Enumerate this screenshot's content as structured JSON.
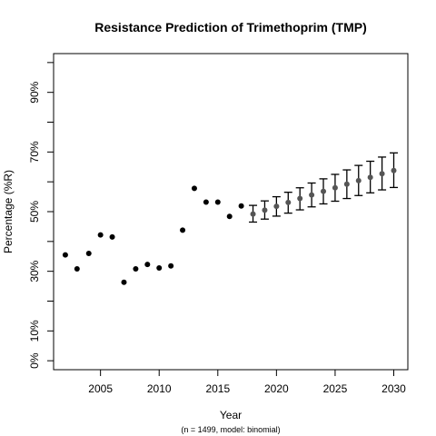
{
  "chart_data": {
    "type": "scatter",
    "title": "Resistance Prediction of Trimethoprim (TMP)",
    "xlabel": "Year",
    "ylabel": "Percentage (%R)",
    "caption": "(n = 1499, model: binomial)",
    "xlim": [
      2001,
      2031.2
    ],
    "ylim": [
      -3,
      103
    ],
    "x_ticks": [
      {
        "value": 2005,
        "label": "2005"
      },
      {
        "value": 2010,
        "label": "2010"
      },
      {
        "value": 2015,
        "label": "2015"
      },
      {
        "value": 2020,
        "label": "2020"
      },
      {
        "value": 2025,
        "label": "2025"
      },
      {
        "value": 2030,
        "label": "2030"
      }
    ],
    "y_ticks": [
      {
        "value": 0,
        "label": "0%"
      },
      {
        "value": 10,
        "label": "10%"
      },
      {
        "value": 20,
        "label": ""
      },
      {
        "value": 30,
        "label": "30%"
      },
      {
        "value": 40,
        "label": ""
      },
      {
        "value": 50,
        "label": "50%"
      },
      {
        "value": 60,
        "label": ""
      },
      {
        "value": 70,
        "label": "70%"
      },
      {
        "value": 80,
        "label": ""
      },
      {
        "value": 90,
        "label": "90%"
      },
      {
        "value": 100,
        "label": ""
      }
    ],
    "grid": false,
    "series": [
      {
        "points": [
          {
            "x": 2002,
            "y": 35.5
          },
          {
            "x": 2003,
            "y": 30.8
          },
          {
            "x": 2004,
            "y": 36.0
          },
          {
            "x": 2005,
            "y": 42.2
          },
          {
            "x": 2006,
            "y": 41.5
          },
          {
            "x": 2007,
            "y": 26.3
          },
          {
            "x": 2008,
            "y": 30.8
          },
          {
            "x": 2009,
            "y": 32.3
          },
          {
            "x": 2010,
            "y": 31.1
          },
          {
            "x": 2011,
            "y": 31.8
          },
          {
            "x": 2012,
            "y": 43.8
          },
          {
            "x": 2013,
            "y": 57.8
          },
          {
            "x": 2014,
            "y": 53.2
          },
          {
            "x": 2015,
            "y": 53.2
          },
          {
            "x": 2016,
            "y": 48.4
          },
          {
            "x": 2017,
            "y": 51.9
          }
        ],
        "color": "#000000"
      },
      {
        "points": [
          {
            "x": 2018,
            "y": 49.2,
            "lower": 46.5,
            "upper": 52.1
          },
          {
            "x": 2019,
            "y": 50.5,
            "lower": 47.5,
            "upper": 53.6
          },
          {
            "x": 2020,
            "y": 51.8,
            "lower": 48.5,
            "upper": 55.0
          },
          {
            "x": 2021,
            "y": 53.1,
            "lower": 49.5,
            "upper": 56.5
          },
          {
            "x": 2022,
            "y": 54.4,
            "lower": 50.6,
            "upper": 58.0
          },
          {
            "x": 2023,
            "y": 55.6,
            "lower": 51.6,
            "upper": 59.6
          },
          {
            "x": 2024,
            "y": 56.8,
            "lower": 52.6,
            "upper": 61.0
          },
          {
            "x": 2025,
            "y": 58.0,
            "lower": 53.5,
            "upper": 62.5
          },
          {
            "x": 2026,
            "y": 59.2,
            "lower": 54.4,
            "upper": 64.0
          },
          {
            "x": 2027,
            "y": 60.4,
            "lower": 55.4,
            "upper": 65.5
          },
          {
            "x": 2028,
            "y": 61.5,
            "lower": 56.3,
            "upper": 66.9
          },
          {
            "x": 2029,
            "y": 62.7,
            "lower": 57.3,
            "upper": 68.3
          },
          {
            "x": 2030,
            "y": 63.8,
            "lower": 58.1,
            "upper": 69.7
          }
        ],
        "color": "#555555",
        "error_bar_color": "#000000"
      }
    ]
  }
}
